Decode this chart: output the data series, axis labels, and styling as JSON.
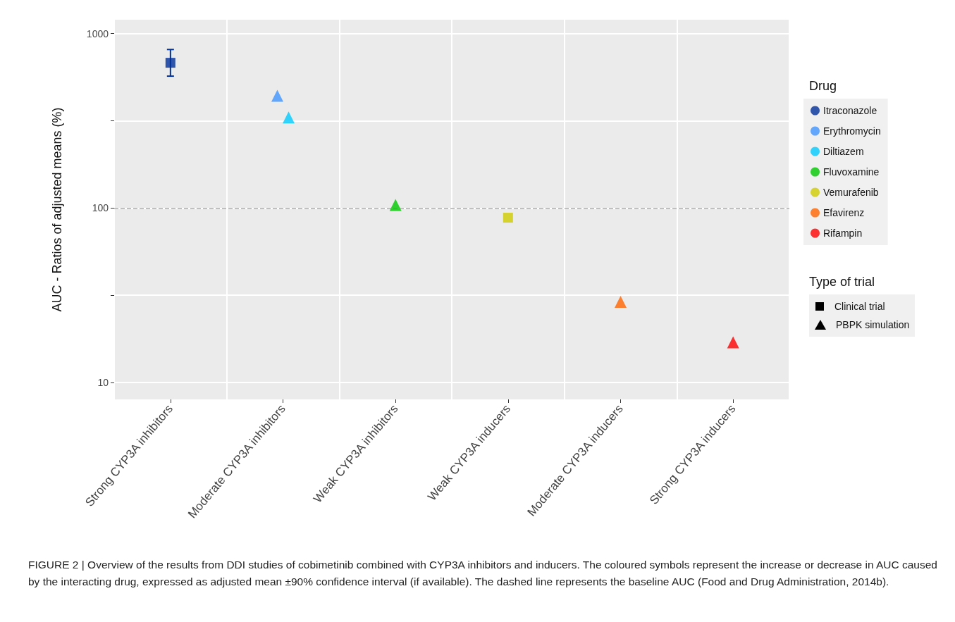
{
  "chart_data": {
    "type": "scatter",
    "categories": [
      "Strong CYP3A inhibitors",
      "Moderate CYP3A inhibitors",
      "Weak CYP3A inhibitors",
      "Weak CYP3A inducers",
      "Moderate CYP3A inducers",
      "Strong CYP3A inducers"
    ],
    "ylabel": "AUC - Ratios of adjusted means (%)",
    "legend_title": "Drug",
    "series": [
      {
        "name": "Itraconazole",
        "color": "#00309a",
        "marker": "square",
        "values": [
          680,
          null,
          null,
          null,
          null,
          null
        ],
        "errors": [
          [
            570,
            810
          ],
          null,
          null,
          null,
          null,
          null
        ]
      },
      {
        "name": "Erythromycin",
        "color": "#3f95ff",
        "marker": "triangle",
        "values": [
          null,
          440,
          null,
          null,
          null,
          null
        ]
      },
      {
        "name": "Diltiazem",
        "color": "#00cbff",
        "marker": "triangle",
        "values": [
          null,
          330,
          null,
          null,
          null,
          null
        ]
      },
      {
        "name": "Fluvoxamine",
        "color": "#00c800",
        "marker": "triangle",
        "values": [
          null,
          null,
          104,
          null,
          null,
          null
        ]
      },
      {
        "name": "Vemurafenib",
        "color": "#cfcc00",
        "marker": "square",
        "values": [
          null,
          null,
          null,
          88,
          null,
          null
        ]
      },
      {
        "name": "Efavirenz",
        "color": "#ff6400",
        "marker": "triangle",
        "values": [
          null,
          null,
          null,
          null,
          29,
          null
        ]
      },
      {
        "name": "Rifampin",
        "color": "#ff0000",
        "marker": "triangle",
        "values": [
          null,
          null,
          null,
          null,
          null,
          17
        ]
      }
    ],
    "log": "y",
    "ylim": [
      8,
      1200
    ],
    "yticks": [
      10,
      {
        "value": 31.6,
        "label": null
      },
      100,
      {
        "value": 316,
        "label": null
      },
      1000
    ],
    "grid": true,
    "legend": "right",
    "ref_lines": [
      {
        "axis": "y",
        "value": 100,
        "color": "#aaaaaa",
        "line_style": "dashed"
      }
    ],
    "annotations": [
      "Type of trial",
      "Clinical trial",
      "PBPK simulation",
      "FIGURE 2 | Overview of the results from DDI studies of cobimetinib combined with CYP3A inhibitors and inducers. The coloured symbols represent the increase or decrease in AUC caused by the interacting drug, expressed as adjusted mean ±90% confidence interval (if available). The dashed line represents the baseline AUC (Food and Drug Administration, 2014b)."
    ]
  }
}
